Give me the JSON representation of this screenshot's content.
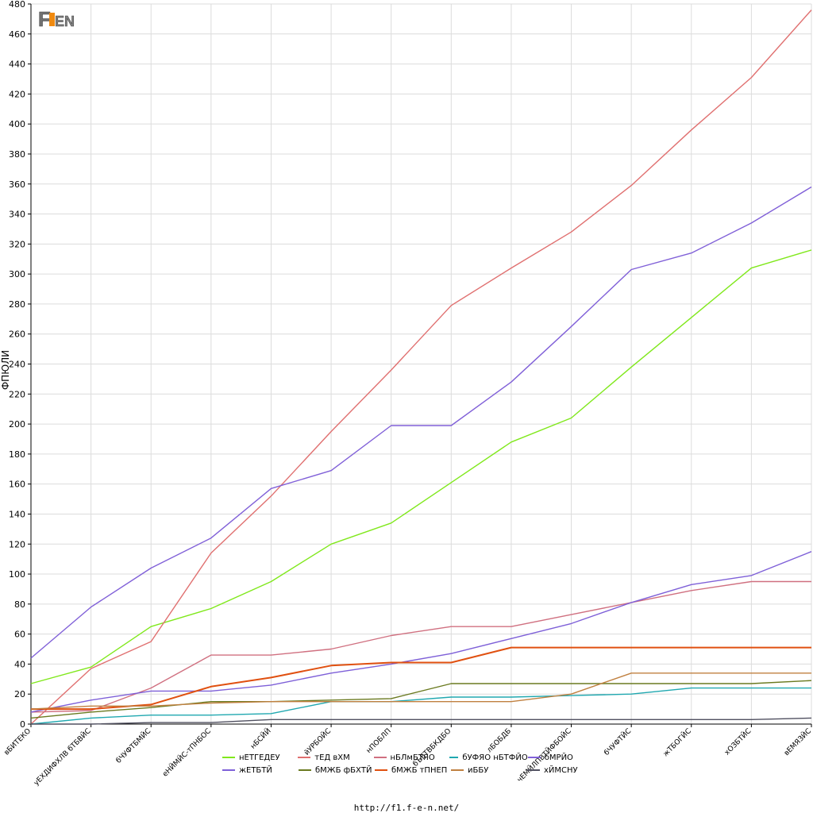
{
  "logo_text": "F1EN",
  "footer_url": "http://f1.f-e-n.net/",
  "chart_data": {
    "type": "line",
    "ylabel": "ФПЮЛИ",
    "ylim": [
      0,
      480
    ],
    "ytick_step": 20,
    "grid": true,
    "legend_position": "bottom",
    "categories": [
      "вБИТЕКО",
      "уЕХДИФХЛВ бТБВЙС",
      "бЧУФТБМЙС",
      "еНЙМЙС-тПНБОС",
      "нБСЙЙ",
      "йУРБОЙС",
      "нПОБЛП",
      "бЪЕТВБКДБО",
      "лБОБДБ",
      "чЕМЙЛПВТЙФБОЙС",
      "бЧУФТЙС",
      "жТБОГЙС",
      "хОЗБТЙС",
      "вЕМЯЗЙС"
    ],
    "series": [
      {
        "name": "нЕТГЕДЕУ",
        "color": "#80e81c",
        "values": [
          27,
          38,
          65,
          77,
          95,
          120,
          134,
          161,
          188,
          204,
          238,
          271,
          304,
          316
        ]
      },
      {
        "name": "тЕД вХМ",
        "color": "#e07070",
        "values": [
          0,
          37,
          55,
          114,
          152,
          195,
          236,
          279,
          304,
          328,
          359,
          396,
          431,
          476
        ]
      },
      {
        "name": "нБЛмБТЯО",
        "color": "#d07080",
        "values": [
          8,
          9,
          24,
          46,
          46,
          50,
          59,
          65,
          65,
          73,
          81,
          89,
          95,
          95
        ]
      },
      {
        "name": "бУФЯО нБТФЙО",
        "color": "#20a8b0",
        "values": [
          0,
          4,
          6,
          6,
          7,
          15,
          15,
          18,
          18,
          19,
          20,
          24,
          24,
          24
        ]
      },
      {
        "name": "бМРЙО",
        "color": "#8060d8",
        "values": [
          44,
          78,
          104,
          124,
          157,
          169,
          199,
          199,
          228,
          265,
          303,
          314,
          334,
          358
        ]
      },
      {
        "name": "жЕТБТЙ",
        "color": "#7e60d8",
        "values": [
          8,
          16,
          22,
          22,
          26,
          34,
          40,
          47,
          57,
          67,
          81,
          93,
          99,
          115
        ]
      },
      {
        "name": "бМЖБ фБХТЙ",
        "color": "#6a7a20",
        "values": [
          4,
          8,
          11,
          15,
          15,
          16,
          17,
          27,
          27,
          27,
          27,
          27,
          27,
          29
        ]
      },
      {
        "name": "бМЖБ тПНЕП",
        "color": "#e05010",
        "values": [
          10,
          10,
          13,
          25,
          31,
          39,
          41,
          41,
          51,
          51,
          51,
          51,
          51,
          51
        ]
      },
      {
        "name": "иББУ",
        "color": "#c08040",
        "values": [
          10,
          12,
          12,
          14,
          15,
          15,
          15,
          15,
          15,
          20,
          34,
          34,
          34,
          34
        ]
      },
      {
        "name": "хЙМСНУ",
        "color": "#505060",
        "values": [
          0,
          0,
          1,
          1,
          3,
          3,
          3,
          3,
          3,
          3,
          3,
          3,
          3,
          4
        ]
      }
    ],
    "legend_order": [
      [
        "нЕТГЕДЕУ",
        "тЕД вХМ",
        "нБЛмБТЯО",
        "бУФЯО нБТФЙО",
        "бМРЙО"
      ],
      [
        "жЕТБТЙ",
        "бМЖБ фБХТЙ",
        "бМЖБ тПНЕП",
        "иББУ",
        "хЙМСНУ"
      ]
    ]
  }
}
